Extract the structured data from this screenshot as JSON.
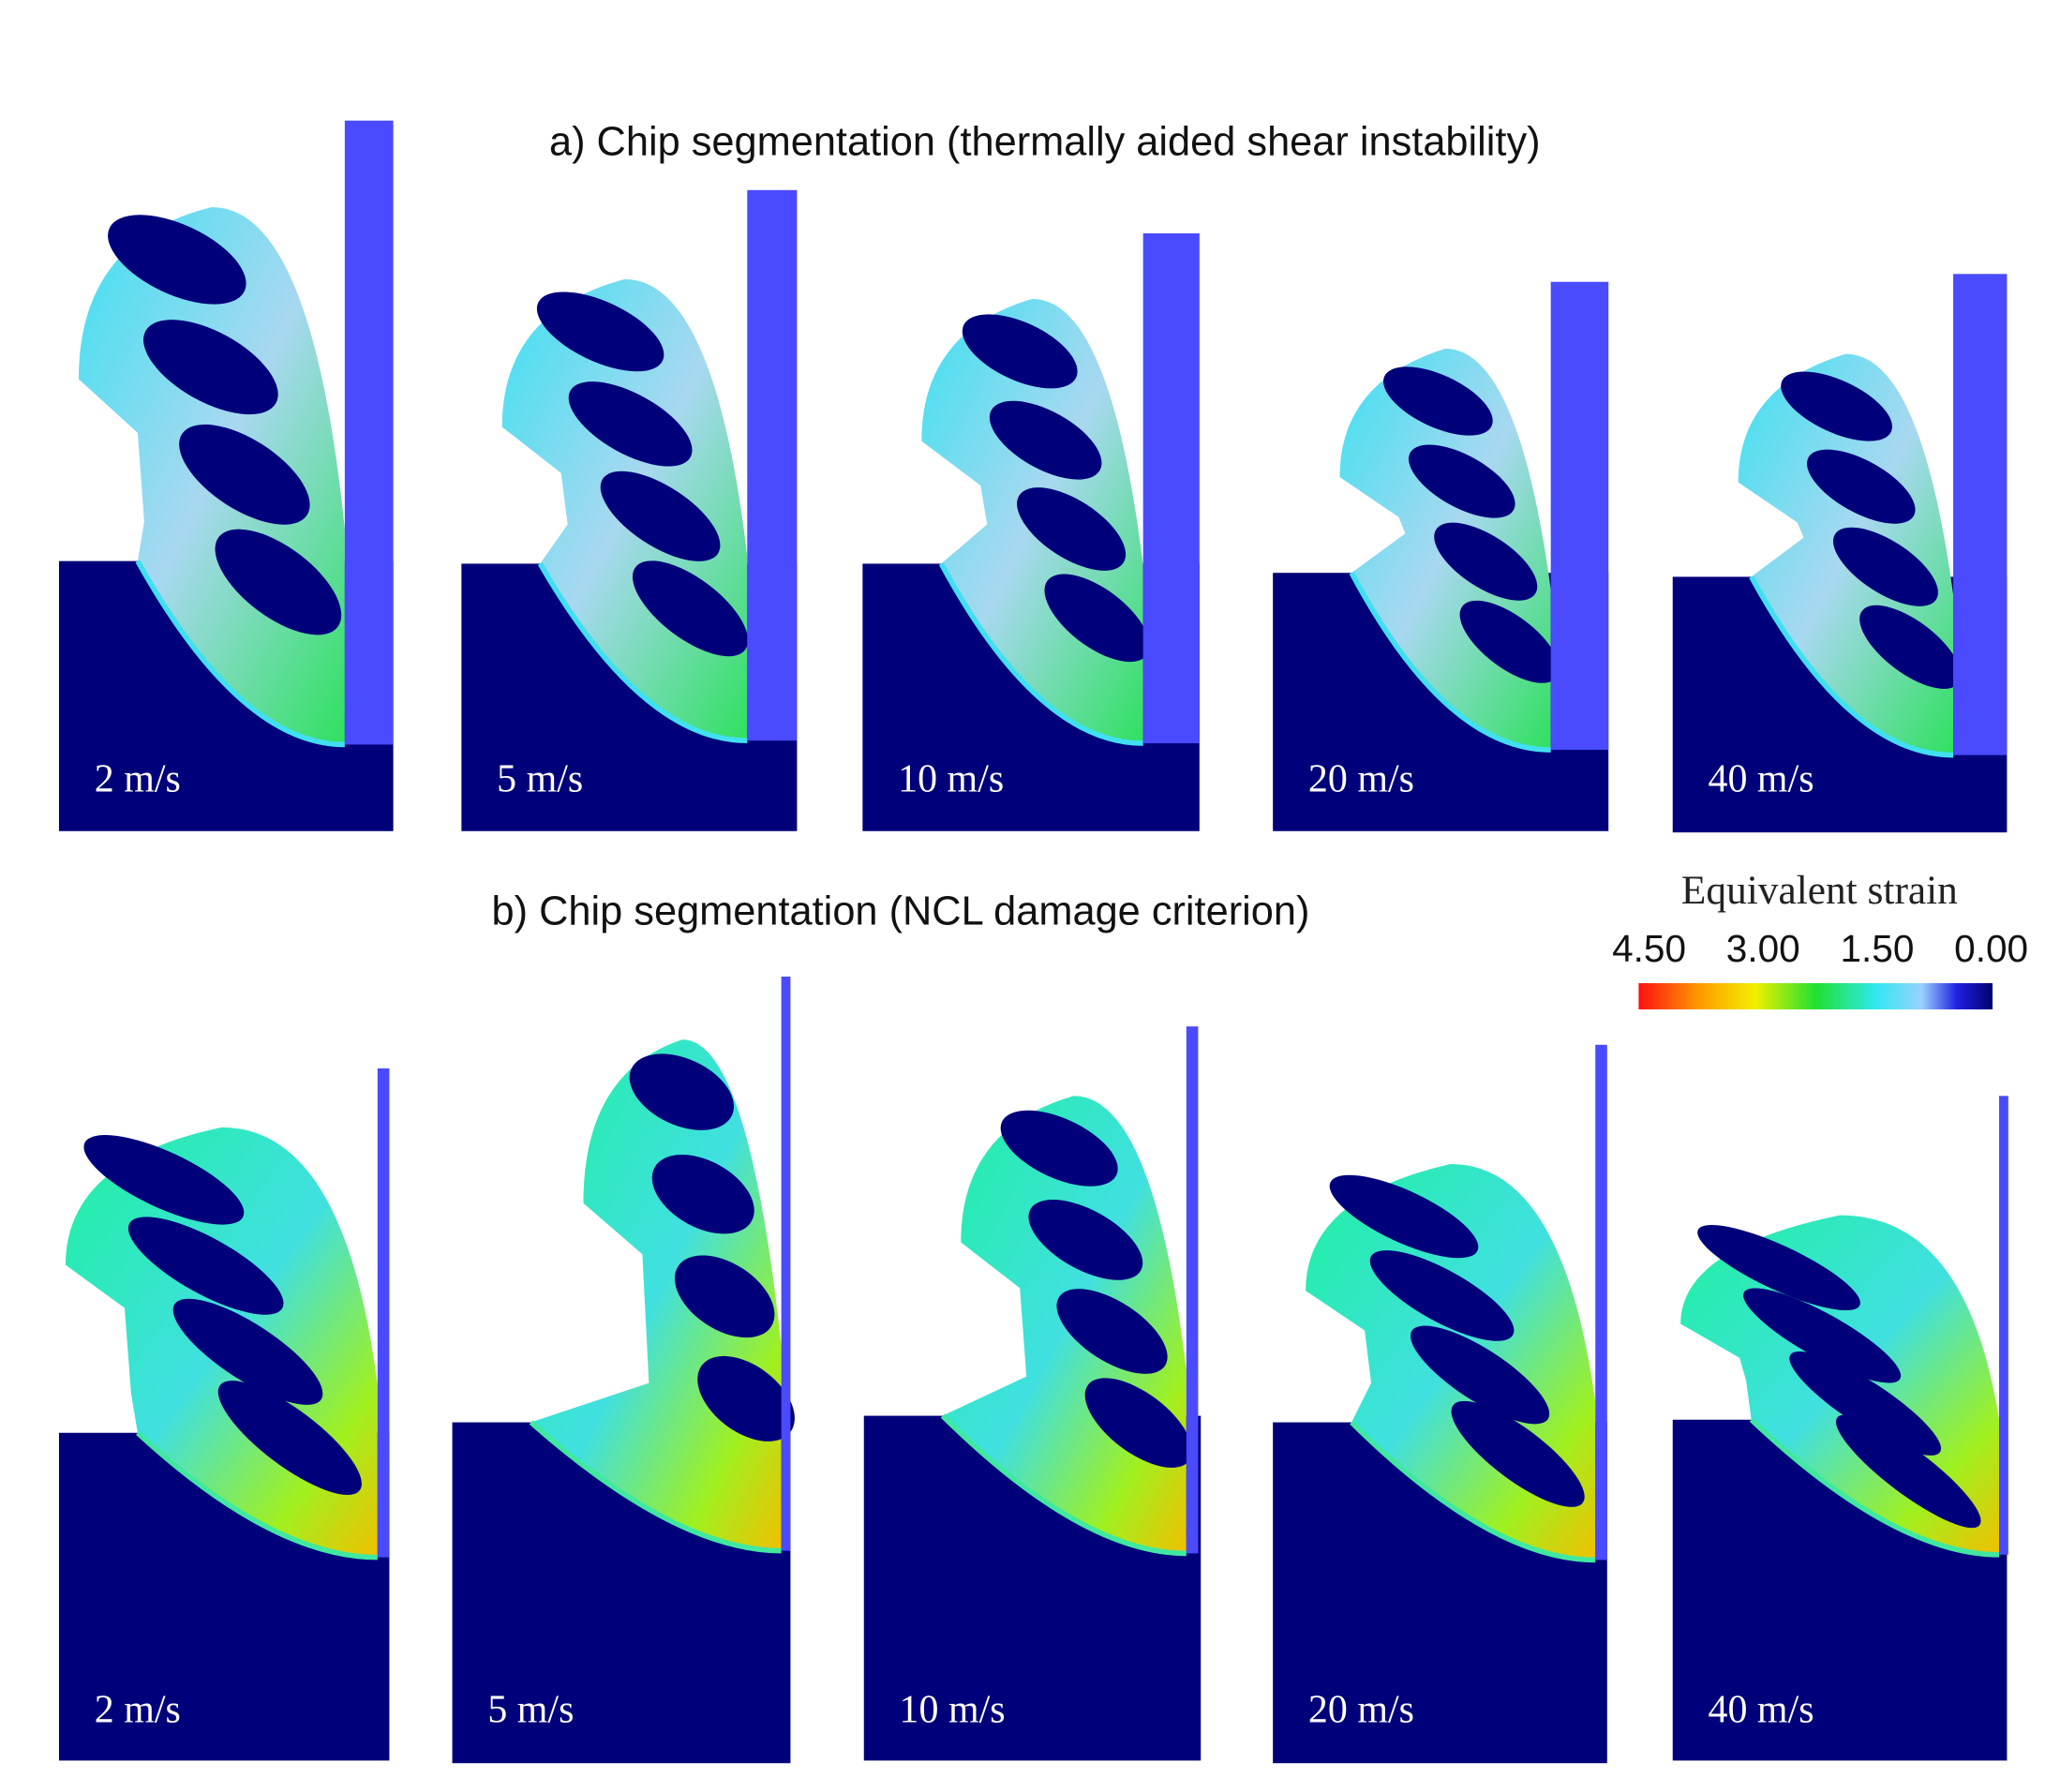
{
  "figure": {
    "panels": [
      {
        "title": "a) Chip segmentation (thermally aided shear instability)",
        "labels": [
          "2 m/s",
          "5 m/s",
          "10 m/s",
          "20 m/s",
          "40 m/s"
        ]
      },
      {
        "title": "b) Chip segmentation (NCL damage criterion)",
        "labels": [
          "2 m/s",
          "5 m/s",
          "10 m/s",
          "20 m/s",
          "40 m/s"
        ]
      }
    ],
    "colorbar": {
      "title": "Equivalent strain",
      "ticks": [
        "4.50",
        "3.00",
        "1.50",
        "0.00"
      ]
    }
  }
}
